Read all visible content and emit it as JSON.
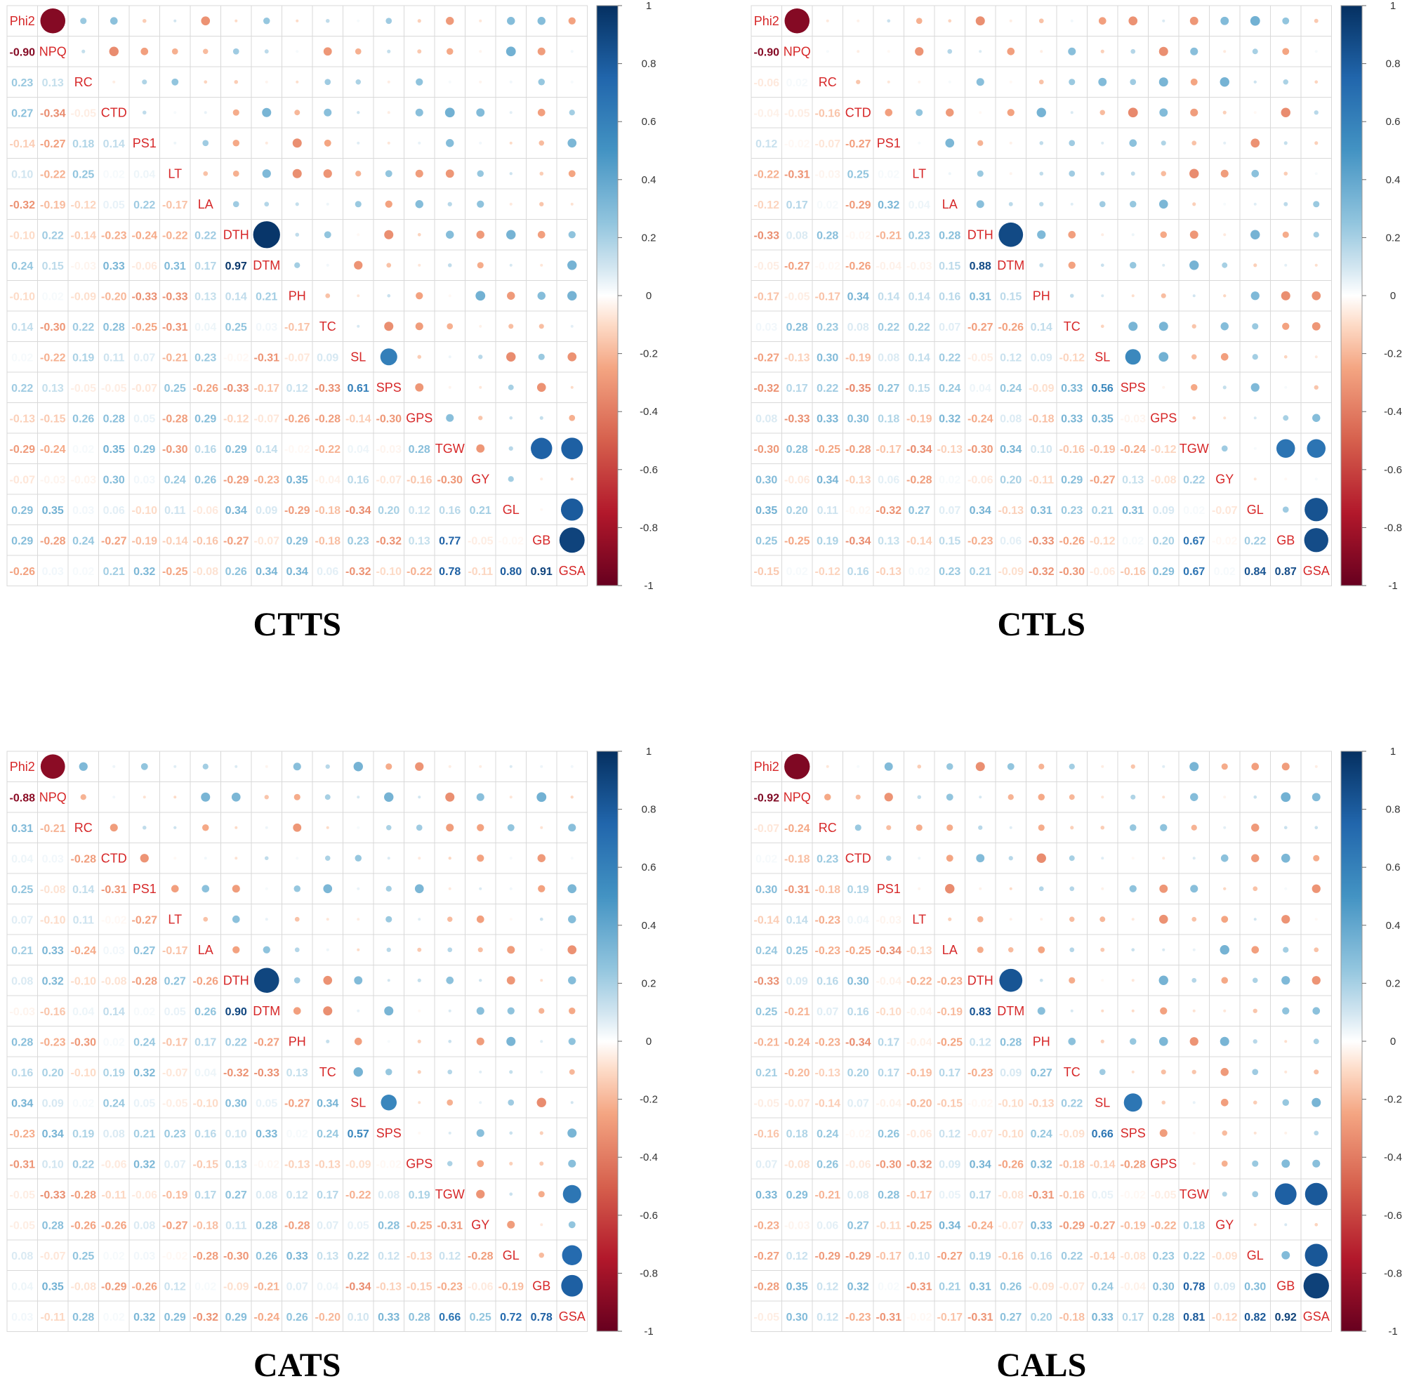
{
  "chart_data": [
    {
      "type": "heatmap",
      "title": "CTTS",
      "labels": [
        "Phi2",
        "NPQ",
        "RC",
        "CTD",
        "PS1",
        "LT",
        "LA",
        "DTH",
        "DTM",
        "PH",
        "TC",
        "SL",
        "SPS",
        "GPS",
        "TGW",
        "GY",
        "GL",
        "GB",
        "GSA"
      ],
      "matrix": [],
      "legend_ticks": [
        1,
        0.8,
        0.6,
        0.4,
        0.2,
        0,
        -0.2,
        -0.4,
        -0.6,
        -0.8,
        -1
      ]
    },
    {
      "type": "heatmap",
      "title": "CTLS",
      "labels": [
        "Phi2",
        "NPQ",
        "RC",
        "CTD",
        "PS1",
        "LT",
        "LA",
        "DTH",
        "DTM",
        "PH",
        "TC",
        "SL",
        "SPS",
        "GPS",
        "TGW",
        "GY",
        "GL",
        "GB",
        "GSA"
      ],
      "matrix": [],
      "legend_ticks": [
        1,
        0.8,
        0.6,
        0.4,
        0.2,
        0,
        -0.2,
        -0.4,
        -0.6,
        -0.8,
        -1
      ]
    },
    {
      "type": "heatmap",
      "title": "CATS",
      "labels": [
        "Phi2",
        "NPQ",
        "RC",
        "CTD",
        "PS1",
        "LT",
        "LA",
        "DTH",
        "DTM",
        "PH",
        "TC",
        "SL",
        "SPS",
        "GPS",
        "TGW",
        "GY",
        "GL",
        "GB",
        "GSA"
      ],
      "matrix": [],
      "legend_ticks": [
        1,
        0.8,
        0.6,
        0.4,
        0.2,
        0,
        -0.2,
        -0.4,
        -0.6,
        -0.8,
        -1
      ]
    },
    {
      "type": "heatmap",
      "title": "CALS",
      "labels": [
        "Phi2",
        "NPQ",
        "RC",
        "CTD",
        "PS1",
        "LT",
        "LA",
        "DTH",
        "DTM",
        "PH",
        "TC",
        "SL",
        "SPS",
        "GPS",
        "TGW",
        "GY",
        "GL",
        "GB",
        "GSA"
      ],
      "matrix": [],
      "legend_ticks": [
        1,
        0.8,
        0.6,
        0.4,
        0.2,
        0,
        -0.2,
        -0.4,
        -0.6,
        -0.8,
        -1
      ]
    }
  ]
}
